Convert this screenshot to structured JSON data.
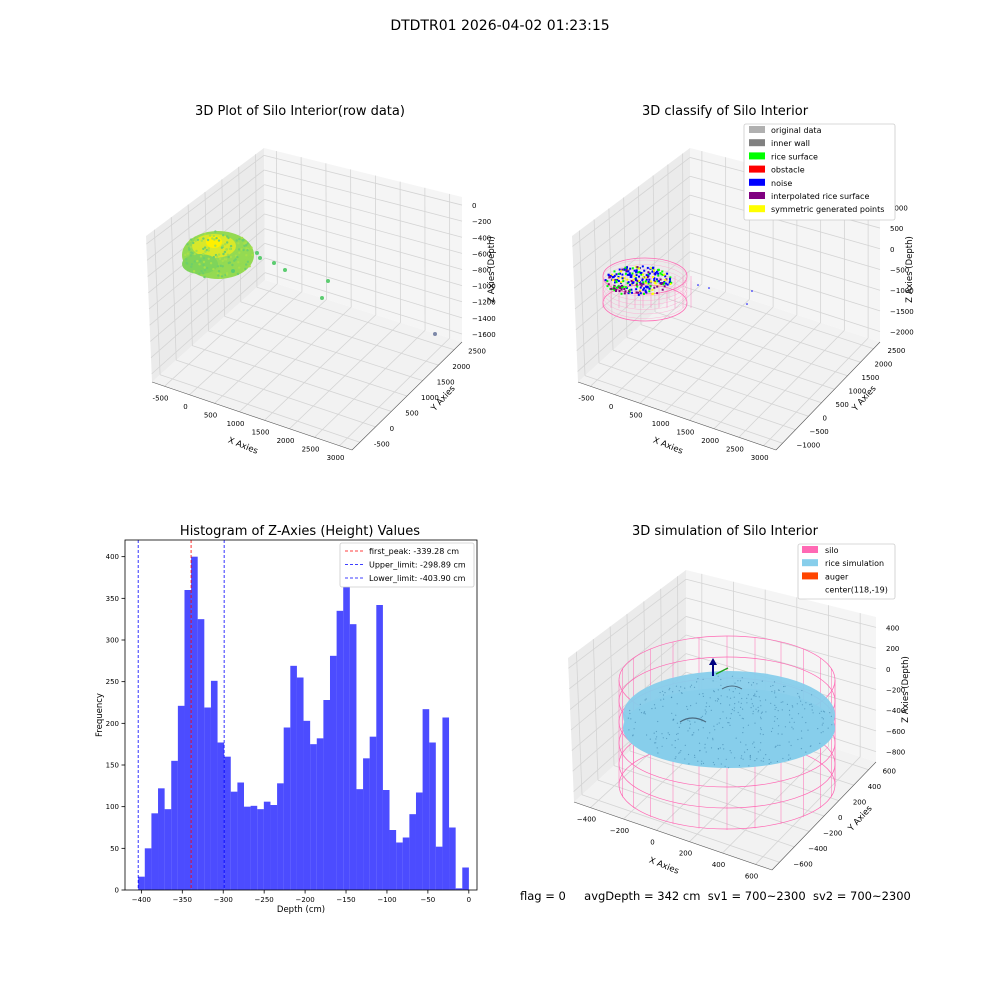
{
  "suptitle": "DTDTR01 2026-04-02 01:23:15",
  "footer": {
    "flag": "flag = 0",
    "avg_depth": "avgDepth = 342 cm",
    "sv1": "sv1 = 700~2300",
    "sv2": "sv2 = 700~2300"
  },
  "panels": {
    "raw": {
      "title": "3D Plot of Silo Interior(row data)",
      "xlabel": "X Axies",
      "ylabel": "Y Axies",
      "zlabel": "Z Axies (Depth)",
      "xticks": [
        "-500",
        "0",
        "500",
        "1000",
        "1500",
        "2000",
        "2500",
        "3000"
      ],
      "yticks": [
        "-500",
        "0",
        "500",
        "1000",
        "1500",
        "2000",
        "2500"
      ],
      "zticks": [
        "0",
        "−200",
        "−400",
        "−600",
        "−800",
        "−1000",
        "−1200",
        "−1400",
        "−1600"
      ]
    },
    "classify": {
      "title": "3D classify of Silo Interior",
      "xlabel": "X Axies",
      "ylabel": "Y Axies",
      "zlabel": "Z Axies (Depth)",
      "xticks": [
        "-500",
        "0",
        "500",
        "1000",
        "1500",
        "2000",
        "2500",
        "3000"
      ],
      "yticks": [
        "−1000",
        "−500",
        "0",
        "500",
        "1000",
        "1500",
        "2000",
        "2500"
      ],
      "zticks": [
        "1000",
        "500",
        "0",
        "−500",
        "−1000",
        "−1500",
        "−2000"
      ],
      "legend": [
        {
          "label": "original data",
          "color": "#b0b0b0"
        },
        {
          "label": "inner wall",
          "color": "#808080"
        },
        {
          "label": "rice surface",
          "color": "#00ff00"
        },
        {
          "label": "obstacle",
          "color": "#ff0000"
        },
        {
          "label": "noise",
          "color": "#0000ff"
        },
        {
          "label": "interpolated rice surface",
          "color": "#800080"
        },
        {
          "label": "symmetric generated points",
          "color": "#ffff00"
        }
      ]
    },
    "simulation": {
      "title": "3D simulation of Silo Interior",
      "xlabel": "X Axies",
      "ylabel": "Y Axies",
      "zlabel": "Z Axies (Depth)",
      "xticks": [
        "−400",
        "−200",
        "0",
        "200",
        "400",
        "600"
      ],
      "yticks": [
        "−600",
        "−400",
        "−200",
        "0",
        "200",
        "400",
        "600"
      ],
      "zticks": [
        "400",
        "200",
        "0",
        "−200",
        "−400",
        "−600",
        "−800"
      ],
      "legend": [
        {
          "label": "silo",
          "color": "#ff69b4"
        },
        {
          "label": "rice simulation",
          "color": "#87ceeb"
        },
        {
          "label": "auger",
          "color": "#ff4500"
        },
        {
          "label": "center(118,-19)",
          "color": ""
        }
      ]
    }
  },
  "chart_data": {
    "type": "bar",
    "title": "Histogram of Z-Axies (Height) Values",
    "xlabel": "Depth (cm)",
    "ylabel": "Frequency",
    "xlim": [
      -420,
      10
    ],
    "ylim": [
      0,
      420
    ],
    "xticks": [
      -400,
      -350,
      -300,
      -250,
      -200,
      -150,
      -100,
      -50,
      0
    ],
    "yticks": [
      0,
      50,
      100,
      150,
      200,
      250,
      300,
      350,
      400
    ],
    "bin_start": -403.9,
    "bin_width": 8.08,
    "values": [
      16,
      50,
      92,
      122,
      97,
      155,
      221,
      360,
      400,
      325,
      219,
      251,
      177,
      160,
      118,
      129,
      100,
      101,
      97,
      106,
      102,
      128,
      195,
      269,
      255,
      203,
      175,
      182,
      228,
      281,
      335,
      368,
      319,
      121,
      158,
      184,
      342,
      120,
      72,
      57,
      63,
      91,
      117,
      217,
      177,
      52,
      207,
      75,
      2,
      27
    ],
    "color": "#0000ff",
    "vlines": [
      {
        "label": "first_peak: -339.28 cm",
        "x": -339.28,
        "color": "#ff0000"
      },
      {
        "label": "Upper_limit: -298.89 cm",
        "x": -298.89,
        "color": "#0000ff"
      },
      {
        "label": "Lower_limit: -403.90 cm",
        "x": -403.9,
        "color": "#0000ff"
      }
    ],
    "grid": false,
    "legend_position": "top-right"
  }
}
